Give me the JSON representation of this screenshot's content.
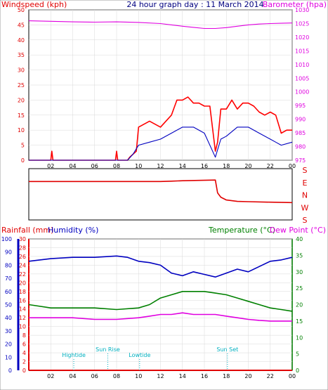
{
  "header": {
    "title": "24 hour graph day : 11 March 2014",
    "left_label": "Windspeed (kph)",
    "right_label": "Barometer (hpa)"
  },
  "colors": {
    "wind": "#e00000",
    "gust": "#ff0000",
    "baro": "#e000e0",
    "humidity": "#0000c0",
    "temp": "#008000",
    "dew": "#e000e0",
    "rain": "#e00000",
    "tide": "#00b0c0",
    "title": "#000080"
  },
  "chart_data": [
    {
      "type": "line",
      "title": "24 hour graph day : 11 March 2014",
      "x_ticks": [
        "02",
        "04",
        "06",
        "08",
        "10",
        "12",
        "14",
        "16",
        "18",
        "20",
        "22",
        "00"
      ],
      "y_left": {
        "label": "Windspeed (kph)",
        "lim": [
          0,
          50
        ],
        "ticks": [
          0,
          5,
          10,
          15,
          20,
          25,
          30,
          35,
          40,
          45,
          50
        ]
      },
      "y_right": {
        "label": "Barometer (hpa)",
        "lim": [
          975,
          1030
        ],
        "ticks": [
          975,
          980,
          985,
          990,
          995,
          1000,
          1005,
          1010,
          1015,
          1020,
          1025,
          1030
        ]
      },
      "series": [
        {
          "axis": "right",
          "x": [
            0,
            2,
            4,
            6,
            8,
            10,
            12,
            13,
            14,
            15,
            16,
            17,
            18,
            19,
            20,
            21,
            22,
            23,
            24
          ],
          "y": [
            1026.0,
            1025.8,
            1025.6,
            1025.5,
            1025.6,
            1025.4,
            1025.0,
            1024.5,
            1024.0,
            1023.6,
            1023.2,
            1023.2,
            1023.5,
            1024.0,
            1024.5,
            1024.8,
            1025.0,
            1025.1,
            1025.2
          ]
        },
        {
          "axis": "left",
          "x": [
            0,
            2,
            2.1,
            2.2,
            4,
            6,
            7.9,
            8,
            8.1,
            9,
            9.2,
            9.8,
            10,
            11,
            12,
            13,
            13.5,
            14,
            14.5,
            15,
            15.5,
            16,
            16.5,
            17,
            17.2,
            17.5,
            18,
            18.5,
            19,
            19.5,
            20,
            20.5,
            21,
            21.5,
            22,
            22.5,
            23,
            23.5,
            24
          ],
          "y": [
            0,
            0,
            3,
            0,
            0,
            0,
            0,
            3,
            0,
            0,
            1,
            3,
            11,
            13,
            11,
            15,
            20,
            20,
            21,
            19,
            19,
            18,
            18,
            3,
            6,
            17,
            17,
            20,
            17,
            19,
            19,
            18,
            16,
            15,
            16,
            15,
            9,
            10,
            10
          ]
        },
        {
          "axis": "left",
          "x": [
            0,
            2,
            4,
            6,
            8,
            9,
            9.5,
            10,
            11,
            12,
            13,
            14,
            15,
            16,
            17,
            17.5,
            18,
            19,
            20,
            21,
            22,
            22.5,
            23,
            24
          ],
          "y": [
            0,
            0,
            0,
            0,
            0,
            0,
            2,
            5,
            6,
            7,
            9,
            11,
            11,
            9,
            1,
            7,
            8,
            11,
            11,
            9,
            7,
            6,
            5,
            6
          ]
        }
      ]
    },
    {
      "type": "line",
      "x_ticks": [],
      "y_labels": [
        "S",
        "E",
        "N",
        "W",
        "S"
      ],
      "series": [
        {
          "x": [
            0,
            12,
            13,
            14,
            17,
            17.2,
            17.5,
            18,
            19,
            20,
            22,
            24
          ],
          "y": [
            270,
            270,
            272,
            275,
            280,
            190,
            160,
            140,
            130,
            128,
            125,
            122
          ]
        }
      ]
    },
    {
      "type": "line",
      "left_labels": {
        "rainfall": "Rainfall (mm)",
        "humidity": "Humidity (%)"
      },
      "right_labels": {
        "temperature": "Temperature (°C)",
        "dew_point": "Dew Point (°C)"
      },
      "x_ticks": [
        "02",
        "04",
        "06",
        "08",
        "10",
        "12",
        "14",
        "16",
        "18",
        "20",
        "22",
        "00"
      ],
      "y_humidity": {
        "lim": [
          0,
          100
        ],
        "ticks": [
          0,
          10,
          20,
          30,
          40,
          50,
          60,
          70,
          80,
          90,
          100
        ]
      },
      "y_rain": {
        "lim": [
          0,
          30
        ],
        "ticks": [
          0,
          2,
          4,
          6,
          8,
          10,
          12,
          14,
          16,
          18,
          20,
          22,
          24,
          26,
          28,
          30
        ]
      },
      "y_temp": {
        "lim": [
          0,
          40
        ],
        "ticks": [
          0,
          5,
          10,
          15,
          20,
          25,
          30,
          35,
          40
        ]
      },
      "series": [
        {
          "name": "Humidity",
          "x": [
            0,
            2,
            4,
            6,
            8,
            9,
            10,
            11,
            12,
            13,
            14,
            15,
            16,
            17,
            18,
            19,
            20,
            21,
            22,
            23,
            24
          ],
          "y": [
            83,
            85,
            86,
            86,
            87,
            86,
            83,
            82,
            80,
            74,
            72,
            75,
            73,
            71,
            74,
            77,
            75,
            79,
            83,
            84,
            86
          ]
        },
        {
          "name": "Temperature",
          "x": [
            0,
            2,
            4,
            6,
            8,
            10,
            11,
            12,
            13,
            14,
            15,
            16,
            17,
            18,
            19,
            20,
            21,
            22,
            23,
            24
          ],
          "y": [
            20,
            19,
            19,
            19,
            18.5,
            19,
            20,
            22,
            23,
            24,
            24,
            24,
            23.5,
            23,
            22,
            21,
            20,
            19,
            18.5,
            18
          ]
        },
        {
          "name": "Dew Point",
          "x": [
            0,
            2,
            4,
            6,
            8,
            10,
            11,
            12,
            13,
            14,
            15,
            16,
            17,
            18,
            19,
            20,
            21,
            22,
            23,
            24
          ],
          "y": [
            16,
            16,
            16,
            15.5,
            15.5,
            16,
            16.5,
            17,
            17,
            17.5,
            17,
            17,
            17,
            16.5,
            16,
            15.5,
            15.2,
            15,
            15,
            15
          ]
        },
        {
          "name": "Rainfall",
          "x": [
            0,
            24
          ],
          "y": [
            0,
            0
          ]
        }
      ],
      "annotations": [
        {
          "text": "Hightide",
          "x": 4.1
        },
        {
          "text": "Sun Rise",
          "x": 7.2
        },
        {
          "text": "Lowtide",
          "x": 10.1
        },
        {
          "text": "Sun Set",
          "x": 18.1
        }
      ]
    }
  ]
}
